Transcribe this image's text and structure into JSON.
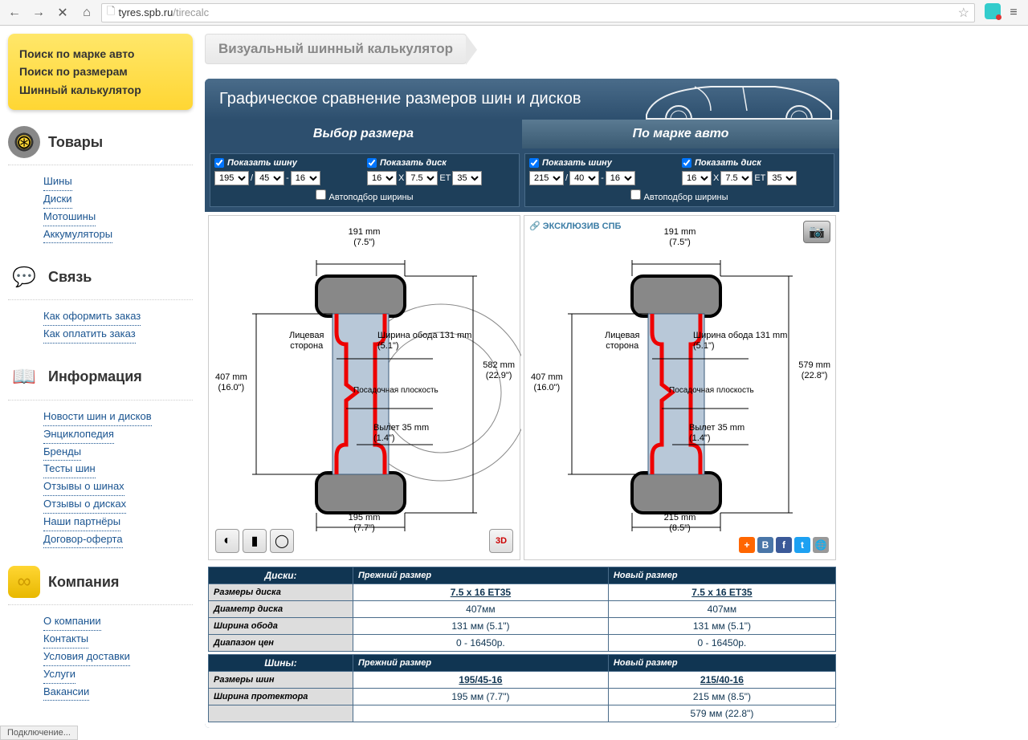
{
  "browser": {
    "url_host": "tyres.spb.ru",
    "url_path": "/tirecalc"
  },
  "yellowbox": {
    "line1": "Поиск по марке авто",
    "line2": "Поиск по размерам",
    "line3": "Шинный калькулятор"
  },
  "sidebar": {
    "products": {
      "title": "Товары",
      "items": [
        "Шины",
        "Диски",
        "Мотошины",
        "Аккумуляторы"
      ]
    },
    "contact": {
      "title": "Связь",
      "items": [
        "Как оформить заказ",
        "Как оплатить заказ"
      ]
    },
    "info": {
      "title": "Информация",
      "items": [
        "Новости шин и дисков",
        "Энциклопедия",
        "Бренды",
        "Тесты шин",
        "Отзывы о шинах",
        "Отзывы о дисках",
        "Наши партнёры",
        "Договор-оферта"
      ]
    },
    "company": {
      "title": "Компания",
      "items": [
        "О компании",
        "Контакты",
        "Условия доставки",
        "Услуги",
        "Вакансии"
      ]
    }
  },
  "breadcrumb": "Визуальный шинный калькулятор",
  "calc": {
    "header": "Графическое сравнение размеров шин и дисков",
    "tab1": "Выбор размера",
    "tab2": "По марке авто",
    "show_tire": "Показать шину",
    "show_disc": "Показать диск",
    "auto_width": "Автоподбор ширины",
    "left": {
      "width": "195",
      "profile": "45",
      "rim": "16",
      "disc_rim": "16",
      "disc_width": "7.5",
      "et": "35"
    },
    "right": {
      "width": "215",
      "profile": "40",
      "rim": "16",
      "disc_rim": "16",
      "disc_width": "7.5",
      "et": "35"
    }
  },
  "diagram": {
    "brand": "ЭКСКЛЮЗИВ СПБ",
    "left": {
      "top_mm": "191 mm",
      "top_in": "(7.5\")",
      "height_mm": "407 mm",
      "height_in": "(16.0\")",
      "total_mm": "582 mm",
      "total_in": "(22.9\")",
      "rim_width": "Ширина обода 131 mm",
      "rim_width_in": "(5.1\")",
      "face": "Лицевая",
      "face2": "сторона",
      "seat": "Посадочная плоскость",
      "offset": "Вылет 35 mm",
      "offset_in": "(1.4\")",
      "bottom_mm": "195 mm",
      "bottom_in": "(7.7\")"
    },
    "right": {
      "top_mm": "191 mm",
      "top_in": "(7.5\")",
      "height_mm": "407 mm",
      "height_in": "(16.0\")",
      "total_mm": "579 mm",
      "total_in": "(22.8\")",
      "rim_width": "Ширина обода 131 mm",
      "rim_width_in": "(5.1\")",
      "face": "Лицевая",
      "face2": "сторона",
      "seat": "Посадочная плоскость",
      "offset": "Вылет 35 mm",
      "offset_in": "(1.4\")",
      "bottom_mm": "215 mm",
      "bottom_in": "(8.5\")"
    }
  },
  "tables": {
    "discs_hdr": "Диски:",
    "old_size": "Прежний размер",
    "new_size": "Новый размер",
    "disc_rows": [
      {
        "label": "Размеры диска",
        "old": "7.5 x 16 ET35",
        "new": "7.5 x 16 ET35",
        "link": true
      },
      {
        "label": "Диаметр диска",
        "old": "407мм",
        "new": "407мм"
      },
      {
        "label": "Ширина обода",
        "old": "131 мм (5.1\")",
        "new": "131 мм (5.1\")"
      },
      {
        "label": "Диапазон цен",
        "old": "0 - 16450р.",
        "new": "0 - 16450р."
      }
    ],
    "tires_hdr": "Шины:",
    "tire_rows": [
      {
        "label": "Размеры шин",
        "old": "195/45-16",
        "new": "215/40-16",
        "link": true
      },
      {
        "label": "Ширина протектора",
        "old": "195 мм (7.7\")",
        "new": "215 мм (8.5\")"
      },
      {
        "label": "",
        "old": "",
        "new": "579 мм (22.8\")"
      }
    ]
  },
  "status": "Подключение..."
}
